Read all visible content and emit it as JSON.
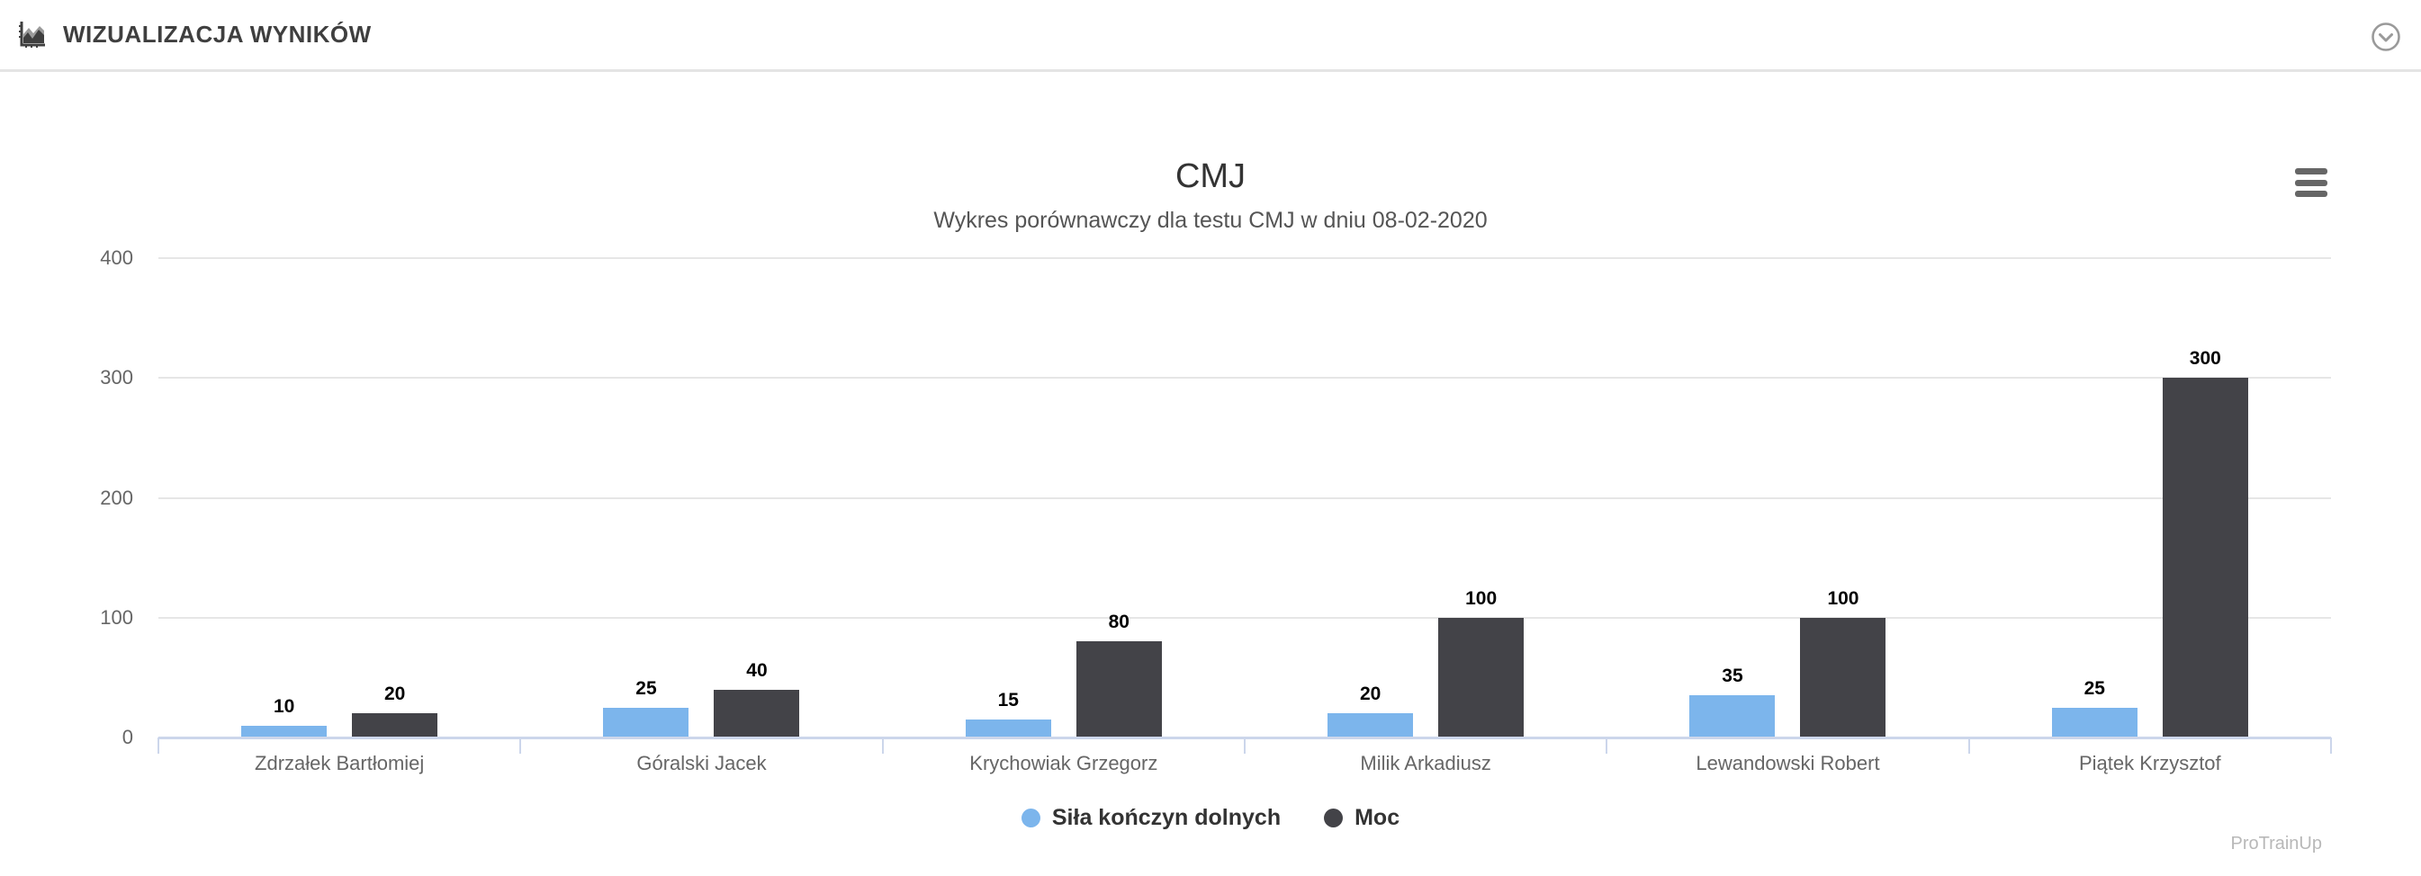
{
  "header": {
    "title": "WIZUALIZACJA WYNIKÓW"
  },
  "icons": {
    "header": "area-chart-icon",
    "collapse": "chevron-down-circle-icon",
    "export": "hamburger-menu-icon"
  },
  "chart_data": {
    "type": "bar",
    "title": "CMJ",
    "subtitle": "Wykres porównawczy dla testu CMJ w dniu 08-02-2020",
    "categories": [
      "Zdrzałek Bartłomiej",
      "Góralski Jacek",
      "Krychowiak Grzegorz",
      "Milik Arkadiusz",
      "Lewandowski Robert",
      "Piątek Krzysztof"
    ],
    "series": [
      {
        "name": "Siła kończyn dolnych",
        "color": "#7cb5ec",
        "values": [
          10,
          25,
          15,
          20,
          35,
          25
        ]
      },
      {
        "name": "Moc",
        "color": "#434348",
        "values": [
          20,
          40,
          80,
          100,
          100,
          300
        ]
      }
    ],
    "yticks": [
      0,
      100,
      200,
      300,
      400
    ],
    "ylim": [
      0,
      400
    ],
    "grid": true,
    "legend_position": "bottom",
    "data_labels": true,
    "axis_line_color": "#ccd6eb",
    "gridline_color": "#e6e6e6"
  },
  "footer": {
    "watermark": "ProTrainUp"
  }
}
